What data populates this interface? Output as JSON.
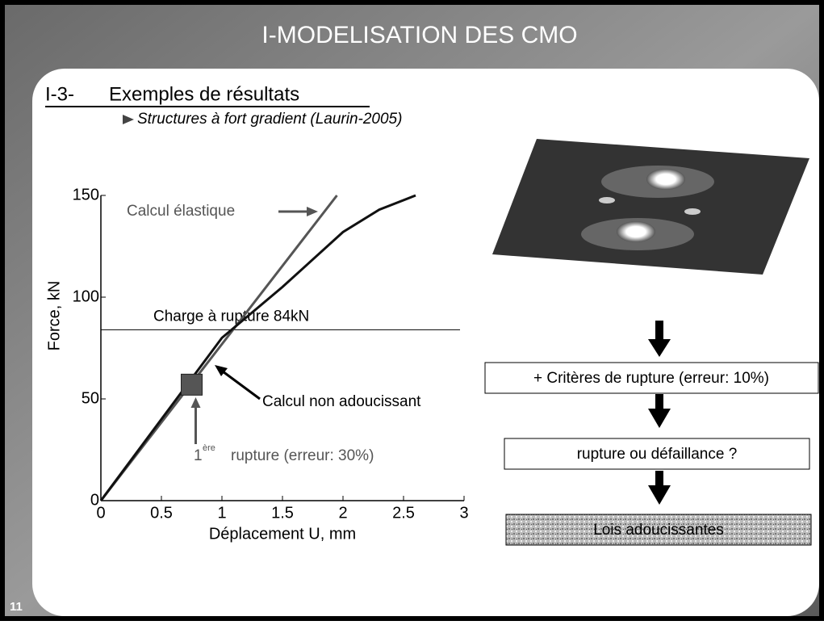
{
  "slide": {
    "title": "I-MODELISATION DES CMO",
    "section_number": "I-3-",
    "section_title": "Exemples de résultats",
    "subtitle": "Structures à fort gradient (Laurin-2005)",
    "steps": [
      "+ Critères de rupture (erreur: 10%)",
      "rupture ou défaillance ?",
      "Lois adoucissantes"
    ],
    "page_number": "11"
  },
  "chart_data": {
    "type": "line",
    "xlabel": "Déplacement U, mm",
    "ylabel": "Force, kN",
    "xlim": [
      0,
      3
    ],
    "ylim": [
      0,
      150
    ],
    "xticks": [
      0,
      0.5,
      1,
      1.5,
      2,
      2.5,
      3
    ],
    "yticks": [
      0,
      50,
      100,
      150
    ],
    "series": [
      {
        "color": "#555555",
        "x": [
          0,
          1.95
        ],
        "values": [
          0,
          150
        ]
      },
      {
        "color": "#111111",
        "x": [
          0,
          0.5,
          1,
          1.5,
          2,
          2.3,
          2.6
        ],
        "values": [
          0,
          40,
          80,
          105,
          132,
          143,
          150
        ]
      }
    ],
    "hline": {
      "value": 84,
      "label": "Charge à rupture 84kN"
    },
    "marker": {
      "x": 0.75,
      "y": 57
    },
    "annotations": {
      "elastic": "Calcul élastique",
      "non_softening": "Calcul non adoucissant",
      "first_rupture_number": "1",
      "first_rupture_sup": "ère",
      "first_rupture_text": "rupture (erreur: 30%)"
    }
  }
}
